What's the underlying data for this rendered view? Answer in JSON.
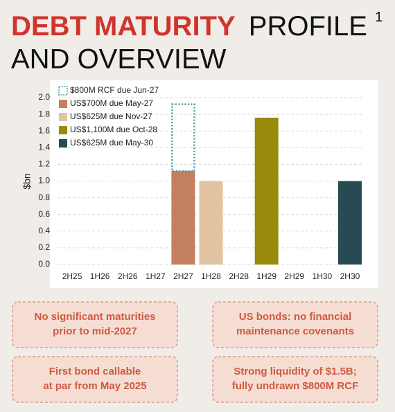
{
  "header": {
    "title_highlight": "DEBT MATURITY",
    "title_rest": "PROFILE",
    "footnote_mark": "1",
    "title_line2": "AND OVERVIEW"
  },
  "chart_data": {
    "type": "bar",
    "stacked": true,
    "y_label": "$bn",
    "categories": [
      "2H25",
      "1H26",
      "2H26",
      "1H27",
      "2H27",
      "1H28",
      "2H28",
      "1H29",
      "2H29",
      "1H30",
      "2H30"
    ],
    "series": [
      {
        "name": "$800M RCF due Jun-27",
        "color": "#4a9a9e",
        "outline": true,
        "values": [
          null,
          null,
          null,
          null,
          0.8,
          null,
          null,
          null,
          null,
          null,
          null
        ]
      },
      {
        "name": "US$700M due May-27",
        "color": "#c47f5e",
        "values": [
          null,
          null,
          null,
          null,
          1.12,
          null,
          null,
          null,
          null,
          null,
          null
        ]
      },
      {
        "name": "US$625M due Nov-27",
        "color": "#e2c4a2",
        "values": [
          null,
          null,
          null,
          null,
          null,
          1.0,
          null,
          null,
          null,
          null,
          null
        ]
      },
      {
        "name": "US$1,100M due Oct-28",
        "color": "#9a8a0b",
        "values": [
          null,
          null,
          null,
          null,
          null,
          null,
          null,
          1.76,
          null,
          null,
          null
        ]
      },
      {
        "name": "US$625M due May-30",
        "color": "#274b52",
        "values": [
          null,
          null,
          null,
          null,
          null,
          null,
          null,
          null,
          null,
          null,
          1.0
        ]
      }
    ],
    "ylim": [
      0,
      2.0
    ],
    "yticks": [
      {
        "value": 0,
        "label": "0.0"
      },
      0.2,
      0.4,
      0.6,
      0.8,
      {
        "value": 1,
        "label": "1.0"
      },
      1.2,
      1.4,
      1.6,
      1.8,
      {
        "value": 2,
        "label": "2.0"
      }
    ],
    "grid": true,
    "legend": "top-left"
  },
  "callouts": [
    [
      "No significant maturities",
      "prior to mid-2027"
    ],
    [
      "US bonds: no financial",
      "maintenance covenants"
    ],
    [
      "First bond callable",
      "at par from May 2025"
    ],
    [
      "Strong liquidity of $1.5B;",
      "fully undrawn $800M RCF"
    ]
  ]
}
